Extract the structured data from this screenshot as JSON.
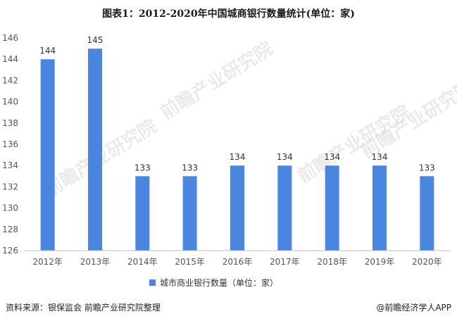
{
  "page": {
    "title": "图表1：2012-2020年中国城商银行数量统计(单位：家)",
    "source": "资料来源：银保监会 前瞻产业研究院整理",
    "brand": "@前瞻经济学人APP",
    "watermark": "前瞻产业研究院"
  },
  "colors": {
    "bar": "#4a86e0",
    "axis": "#bfbfbf",
    "text": "#333333"
  },
  "chart_data": {
    "type": "bar",
    "title": "图表1：2012-2020年中国城商银行数量统计(单位：家)",
    "categories": [
      "2012年",
      "2013年",
      "2014年",
      "2015年",
      "2016年",
      "2017年",
      "2018年",
      "2019年",
      "2020年"
    ],
    "series": [
      {
        "name": "城市商业银行数量（单位：家）",
        "values": [
          144,
          145,
          133,
          133,
          134,
          134,
          134,
          134,
          133
        ]
      }
    ],
    "ylim": [
      126,
      146
    ],
    "yticks": [
      126,
      128,
      130,
      132,
      134,
      136,
      138,
      140,
      142,
      144,
      146
    ],
    "xlabel": "",
    "ylabel": "",
    "grid": false,
    "legend_position": "bottom-center",
    "data_labels": true
  }
}
